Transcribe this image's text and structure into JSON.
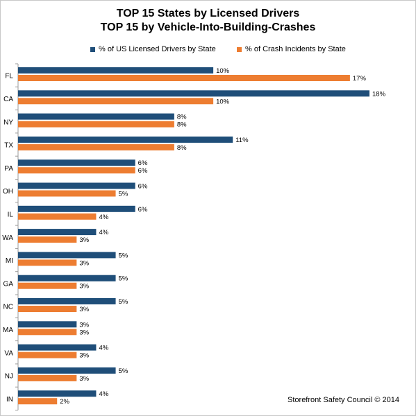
{
  "title_line1": "TOP 15 States by Licensed Drivers",
  "title_line2": "TOP 15 by Vehicle-Into-Building-Crashes",
  "footer": "Storefront Safety Council © 2014",
  "colors": {
    "drivers": "#1f4e79",
    "crashes": "#ed7d31",
    "axis": "#9a9a9a"
  },
  "chart_data": {
    "type": "bar",
    "orientation": "horizontal",
    "categories": [
      "FL",
      "CA",
      "NY",
      "TX",
      "PA",
      "OH",
      "IL",
      "WA",
      "MI",
      "GA",
      "NC",
      "MA",
      "VA",
      "NJ",
      "IN"
    ],
    "series": [
      {
        "name": "% of US Licensed Drivers by State",
        "values": [
          10,
          18,
          8,
          11,
          6,
          6,
          6,
          4,
          5,
          5,
          5,
          3,
          4,
          5,
          4
        ],
        "labels": [
          "10%",
          "18%",
          "8%",
          "11%",
          "6%",
          "6%",
          "6%",
          "4%",
          "5%",
          "5%",
          "5%",
          "3%",
          "4%",
          "5%",
          "4%"
        ]
      },
      {
        "name": "% of Crash Incidents by State",
        "values": [
          17,
          10,
          8,
          8,
          6,
          5,
          4,
          3,
          3,
          3,
          3,
          3,
          3,
          3,
          2
        ],
        "labels": [
          "17%",
          "10%",
          "8%",
          "8%",
          "6%",
          "5%",
          "4%",
          "3%",
          "3%",
          "3%",
          "3%",
          "3%",
          "3%",
          "3%",
          "2%"
        ]
      }
    ],
    "xlim": [
      0,
      18
    ],
    "grid": false,
    "legend_position": "top"
  }
}
